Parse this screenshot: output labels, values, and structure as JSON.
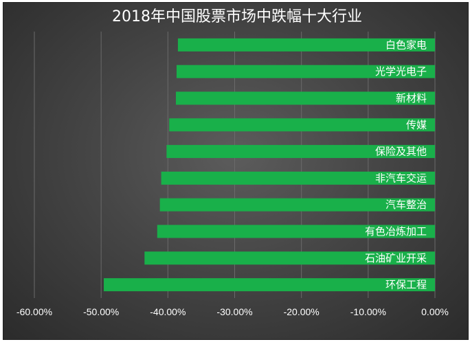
{
  "chart_data": {
    "type": "bar",
    "orientation": "horizontal",
    "title": "2018年中国股票市场中跌幅十大行业",
    "categories": [
      "白色家电",
      "光学光电子",
      "新材料",
      "传媒",
      "保险及其他",
      "非汽车交运",
      "汽车整治",
      "有色冶炼加工",
      "石油矿业开采",
      "环保工程"
    ],
    "values": [
      -38.5,
      -38.7,
      -38.8,
      -39.8,
      -40.2,
      -41.0,
      -41.2,
      -41.6,
      -43.5,
      -49.6
    ],
    "xlim": [
      -60,
      0
    ],
    "x_ticks": [
      -60,
      -50,
      -40,
      -30,
      -20,
      -10,
      0
    ],
    "x_tick_labels": [
      "-60.00%",
      "-50.00%",
      "-40.00%",
      "-30.00%",
      "-20.00%",
      "-10.00%",
      "0.00%"
    ],
    "xlabel": "",
    "ylabel": "",
    "grid": "vertical",
    "bar_color": "#19b04a",
    "label_position": "inside-end"
  }
}
